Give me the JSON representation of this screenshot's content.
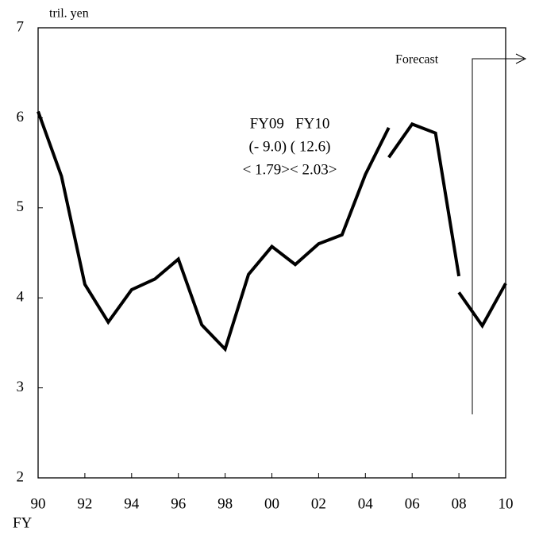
{
  "chart_data": {
    "type": "line",
    "y_label": "tril. yen",
    "x_label": "FY",
    "annotations": [
      "FY09   FY10",
      "(- 9.0) ( 12.6)",
      "< 1.79>< 2.03>",
      "Forecast"
    ],
    "x": [
      1990,
      1991,
      1992,
      1993,
      1994,
      1995,
      1996,
      1997,
      1998,
      1999,
      2000,
      2001,
      2002,
      2003,
      2004,
      2005,
      2005,
      2005,
      2006,
      2007,
      2008,
      2008,
      2008,
      2009,
      2010
    ],
    "series": [
      {
        "color": "#000000",
        "values": [
          6.07,
          5.35,
          4.15,
          3.73,
          4.09,
          4.21,
          4.43,
          3.7,
          3.43,
          4.26,
          4.57,
          4.37,
          4.6,
          4.7,
          5.37,
          5.89,
          null,
          5.56,
          5.93,
          5.83,
          4.24,
          null,
          4.06,
          3.69,
          4.16
        ]
      }
    ],
    "xlim": [
      1990,
      2010
    ],
    "xticks": [
      {
        "value": 1990,
        "label": "90"
      },
      {
        "value": 1992,
        "label": "92"
      },
      {
        "value": 1994,
        "label": "94"
      },
      {
        "value": 1996,
        "label": "96"
      },
      {
        "value": 1998,
        "label": "98"
      },
      {
        "value": 2000,
        "label": "00"
      },
      {
        "value": 2002,
        "label": "02"
      },
      {
        "value": 2004,
        "label": "04"
      },
      {
        "value": 2006,
        "label": "06"
      },
      {
        "value": 2008,
        "label": "08"
      },
      {
        "value": 2010,
        "label": "10"
      }
    ],
    "ylim": [
      2,
      7
    ],
    "yticks": [
      2,
      3,
      4,
      5,
      6,
      7
    ],
    "grid": false
  }
}
